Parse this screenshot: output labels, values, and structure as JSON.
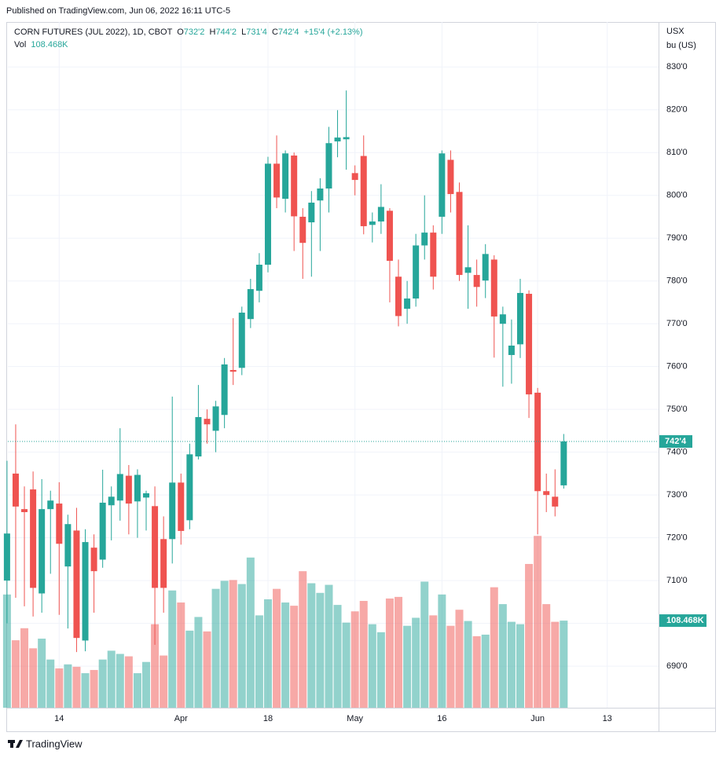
{
  "header": {
    "published": "Published on TradingView.com, Jun 06, 2022 16:11 UTC-5"
  },
  "chart_data": {
    "type": "candlestick",
    "symbol": "CORN FUTURES (JUL 2022), 1D, CBOT",
    "ohlc_labels": [
      {
        "key": "O",
        "label": "732'2"
      },
      {
        "key": "H",
        "label": "744'2"
      },
      {
        "key": "L",
        "label": "731'4"
      },
      {
        "key": "C",
        "label": "742'4"
      }
    ],
    "change_label": "+15'4 (+2.13%)",
    "volume_title": "Vol",
    "last_volume_label": "108.468K",
    "last_price_label": "742'4",
    "currency": "USX",
    "unit": "bu (US)",
    "open": [
      710,
      735,
      726.7,
      731.3,
      707,
      726.7,
      728,
      713.3,
      721.7,
      696,
      717.7,
      714.9,
      727.6,
      728.7,
      734.5,
      728.5,
      729.4,
      727.4,
      719.7,
      719.7,
      732.9,
      724.1,
      739,
      747.8,
      745,
      748.7,
      759.2,
      759.7,
      771.1,
      777.7,
      783.8,
      807.4,
      799.2,
      809.3,
      795,
      793.7,
      798.8,
      801.6,
      812.6,
      813.1,
      805.2,
      809.2,
      793.1,
      793.9,
      796.4,
      781,
      773.5,
      775.9,
      788.3,
      791.3,
      795,
      808.3,
      800.8,
      781.9,
      781.4,
      780.1,
      785,
      770,
      762.7,
      765.2,
      777,
      753.9,
      730.9,
      729.6,
      732.25
    ],
    "high": [
      738,
      746.5,
      732,
      735.5,
      733.7,
      731,
      733,
      725.4,
      727,
      722,
      720.8,
      735.9,
      732,
      745.6,
      737,
      736,
      731,
      732,
      725,
      753,
      735,
      742,
      755.7,
      750,
      752,
      762,
      771.3,
      774,
      780.5,
      786.5,
      809,
      814,
      810.5,
      810,
      797,
      801,
      804,
      816,
      819.9,
      824.5,
      807,
      814,
      796,
      802.6,
      797,
      785,
      780,
      791,
      800,
      793,
      810.5,
      810.5,
      803,
      793,
      785,
      788.6,
      786,
      774,
      771,
      780.5,
      777.8,
      755,
      735,
      736,
      744.25
    ],
    "low": [
      700,
      706,
      704,
      701.6,
      702.5,
      711.6,
      702,
      698.8,
      693.3,
      693.5,
      702.5,
      713,
      719.4,
      724,
      720.8,
      720,
      721.7,
      695,
      702.5,
      714,
      718.4,
      722,
      738.3,
      742,
      740,
      745.6,
      755.7,
      758,
      769,
      775,
      782,
      797,
      796,
      787,
      780.5,
      781,
      787,
      796,
      808.9,
      806,
      800,
      790.9,
      789,
      791,
      775,
      769.4,
      770,
      774,
      785,
      778,
      791,
      796,
      780,
      773.5,
      774,
      776,
      762.1,
      755.3,
      756,
      762,
      748,
      720.8,
      726,
      725,
      731.5
    ],
    "close": [
      721,
      727.3,
      726,
      708.3,
      726.7,
      728.7,
      718.6,
      723.2,
      696.6,
      719,
      712.2,
      728.2,
      729.6,
      734.9,
      728,
      734.7,
      730.4,
      708.3,
      708.3,
      732.9,
      721.6,
      739.5,
      748.2,
      746.5,
      750.7,
      760.5,
      758.8,
      772.6,
      778.1,
      783.8,
      807.4,
      799.5,
      809.8,
      795.1,
      788.9,
      798.3,
      801.6,
      812.2,
      813.5,
      813.6,
      803.6,
      792.8,
      793.9,
      797.3,
      784.7,
      771.8,
      775.9,
      788.3,
      791.3,
      781,
      809.8,
      800.3,
      781.4,
      783.2,
      778.6,
      786.3,
      771.7,
      772.2,
      764.9,
      777.2,
      753.5,
      730.9,
      730,
      727.3,
      742.5
    ],
    "volume": [
      141000,
      84000,
      99000,
      74000,
      86000,
      60000,
      49000,
      54000,
      51000,
      43000,
      47000,
      60000,
      71000,
      67000,
      64000,
      43000,
      57000,
      104000,
      65000,
      146000,
      131000,
      96000,
      113000,
      95000,
      148000,
      158000,
      159000,
      154000,
      187000,
      115000,
      135000,
      148000,
      131000,
      127000,
      170000,
      155000,
      143000,
      153000,
      128000,
      106000,
      120000,
      133000,
      104000,
      94000,
      136000,
      138000,
      102000,
      112000,
      157000,
      115000,
      141000,
      102000,
      122000,
      108000,
      89000,
      91000,
      150000,
      129000,
      107000,
      104000,
      179000,
      214000,
      129000,
      107000,
      108468
    ],
    "up_color": "#26a69a",
    "down_color": "#ef5350",
    "ylim": [
      680.3,
      840.5
    ],
    "yticks": [
      {
        "value": 690,
        "label": "690'0"
      },
      {
        "value": 700,
        "label": "700'0"
      },
      {
        "value": 710,
        "label": "710'0"
      },
      {
        "value": 720,
        "label": "720'0"
      },
      {
        "value": 730,
        "label": "730'0"
      },
      {
        "value": 740,
        "label": "740'0"
      },
      {
        "value": 750,
        "label": "750'0"
      },
      {
        "value": 760,
        "label": "760'0"
      },
      {
        "value": 770,
        "label": "770'0"
      },
      {
        "value": 780,
        "label": "780'0"
      },
      {
        "value": 790,
        "label": "790'0"
      },
      {
        "value": 800,
        "label": "800'0"
      },
      {
        "value": 810,
        "label": "810'0"
      },
      {
        "value": 820,
        "label": "820'0"
      },
      {
        "value": 830,
        "label": "830'0"
      }
    ],
    "xlim": [
      0.1,
      74.9
    ],
    "xticks": [
      {
        "value": 6,
        "label": "14"
      },
      {
        "value": 20,
        "label": "Apr"
      },
      {
        "value": 30,
        "label": "18"
      },
      {
        "value": 40,
        "label": "May"
      },
      {
        "value": 50,
        "label": "16"
      },
      {
        "value": 61,
        "label": "Jun"
      },
      {
        "value": 69,
        "label": "13"
      }
    ],
    "vlim": [
      0,
      400000
    ],
    "grid": true
  },
  "footer": {
    "brand": "TradingView"
  }
}
